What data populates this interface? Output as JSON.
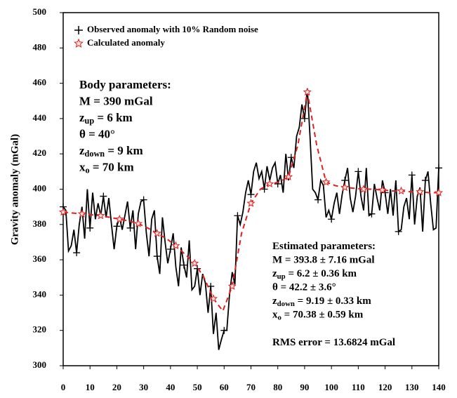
{
  "chart_data": {
    "type": "line",
    "ylabel": "Gravity anomaly (mGal)",
    "xlim": [
      0,
      140
    ],
    "ylim": [
      300,
      500
    ],
    "xticks": [
      0,
      10,
      20,
      30,
      40,
      50,
      60,
      70,
      80,
      90,
      100,
      110,
      120,
      130,
      140
    ],
    "yticks": [
      300,
      320,
      340,
      360,
      380,
      400,
      420,
      440,
      460,
      480,
      500
    ],
    "series": [
      {
        "name": "Observed anomaly with 10% Random noise",
        "color": "#000000",
        "dash": false,
        "marker": "plus",
        "marker_every": 5,
        "x": [
          0,
          1,
          2,
          3,
          4,
          5,
          6,
          7,
          8,
          9,
          10,
          11,
          12,
          13,
          14,
          15,
          16,
          17,
          18,
          19,
          20,
          21,
          22,
          23,
          24,
          25,
          26,
          27,
          28,
          29,
          30,
          31,
          32,
          33,
          34,
          35,
          36,
          37,
          38,
          39,
          40,
          41,
          42,
          43,
          44,
          45,
          46,
          47,
          48,
          49,
          50,
          51,
          52,
          53,
          54,
          55,
          56,
          57,
          58,
          59,
          60,
          61,
          62,
          63,
          64,
          65,
          66,
          67,
          68,
          69,
          70,
          71,
          72,
          73,
          74,
          75,
          76,
          77,
          78,
          79,
          80,
          81,
          82,
          83,
          84,
          85,
          86,
          87,
          88,
          89,
          90,
          91,
          92,
          93,
          94,
          95,
          96,
          97,
          98,
          99,
          100,
          101,
          102,
          103,
          104,
          105,
          106,
          107,
          108,
          109,
          110,
          111,
          112,
          113,
          114,
          115,
          116,
          117,
          118,
          119,
          120,
          121,
          122,
          123,
          124,
          125,
          126,
          127,
          128,
          129,
          130,
          131,
          132,
          133,
          134,
          135,
          136,
          137,
          138,
          139,
          140
        ],
        "values": [
          390,
          388,
          365,
          368,
          377,
          364,
          380,
          390,
          372,
          400,
          378,
          398,
          383,
          392,
          385,
          396,
          384,
          395,
          380,
          366,
          379,
          384,
          377,
          385,
          393,
          378,
          388,
          366,
          386,
          393,
          394,
          375,
          362,
          383,
          388,
          362,
          352,
          384,
          370,
          358,
          366,
          375,
          356,
          345,
          367,
          357,
          350,
          371,
          343,
          345,
          355,
          340,
          352,
          347,
          330,
          345,
          318,
          330,
          309,
          315,
          320,
          320,
          340,
          353,
          346,
          385,
          380,
          387,
          398,
          405,
          397,
          410,
          415,
          406,
          410,
          400,
          413,
          405,
          412,
          415,
          403,
          408,
          398,
          420,
          405,
          418,
          412,
          430,
          435,
          448,
          440,
          457,
          430,
          400,
          398,
          394,
          405,
          402,
          384,
          388,
          383,
          392,
          398,
          386,
          397,
          405,
          412,
          395,
          387,
          396,
          410,
          396,
          388,
          412,
          385,
          386,
          403,
          395,
          388,
          405,
          398,
          386,
          400,
          385,
          405,
          376,
          377,
          390,
          395,
          383,
          408,
          380,
          396,
          401,
          376,
          405,
          410,
          392,
          377,
          378,
          412
        ]
      },
      {
        "name": "Calculated anomaly",
        "color": "#e02020",
        "dash": true,
        "marker": "star",
        "marker_every": 2,
        "x": [
          0,
          3.5,
          7,
          10.5,
          14,
          17.5,
          21,
          24.5,
          28,
          31.5,
          35,
          38.5,
          42,
          45.5,
          49,
          52.5,
          56,
          59.5,
          63,
          66.5,
          70,
          73.5,
          77,
          80.5,
          84,
          87.5,
          91,
          94.5,
          98,
          101.5,
          105,
          108.5,
          112,
          115.5,
          119,
          122.5,
          126,
          129.5,
          133,
          136.5,
          140
        ],
        "values": [
          387,
          386.5,
          386,
          385.5,
          385,
          384,
          383,
          382,
          380.5,
          378,
          375,
          372,
          368,
          363,
          358,
          350,
          338,
          331,
          345,
          375,
          392,
          400,
          403,
          404,
          407,
          425,
          455,
          425,
          404,
          402,
          401,
          400.5,
          400,
          400,
          399.5,
          399,
          399,
          398.5,
          398.5,
          398,
          398
        ]
      }
    ],
    "legend": "upper left",
    "annotations": [
      {
        "lines": [
          [
            {
              "text": "Body parameters:"
            }
          ],
          [
            {
              "text": "M = 390 mGal"
            }
          ],
          [
            {
              "text": "z"
            },
            {
              "text": "up",
              "sub": true
            },
            {
              "text": " = 6 km"
            }
          ],
          [
            {
              "text": "θ = 40°"
            }
          ],
          [
            {
              "text": "z"
            },
            {
              "text": "down",
              "sub": true
            },
            {
              "text": " = 9 km"
            }
          ],
          [
            {
              "text": "x"
            },
            {
              "text": "o",
              "sub": true
            },
            {
              "text": " = 70 km"
            }
          ]
        ]
      },
      {
        "lines": [
          [
            {
              "text": "Estimated parameters:"
            }
          ],
          [
            {
              "text": "M = 393.8 ± 7.16 mGal"
            }
          ],
          [
            {
              "text": "z"
            },
            {
              "text": "up",
              "sub": true
            },
            {
              "text": " = 6.2 ± 0.36 km"
            }
          ],
          [
            {
              "text": "θ = 42.2 ± 3.6°"
            }
          ],
          [
            {
              "text": "z"
            },
            {
              "text": "down",
              "sub": true
            },
            {
              "text": " = 9.19 ± 0.33 km"
            }
          ],
          [
            {
              "text": "x"
            },
            {
              "text": "o",
              "sub": true
            },
            {
              "text": " = 70.38 ± 0.59 km"
            }
          ],
          [
            {
              "text": "RMS error = 13.6824 mGal"
            }
          ]
        ]
      }
    ]
  }
}
